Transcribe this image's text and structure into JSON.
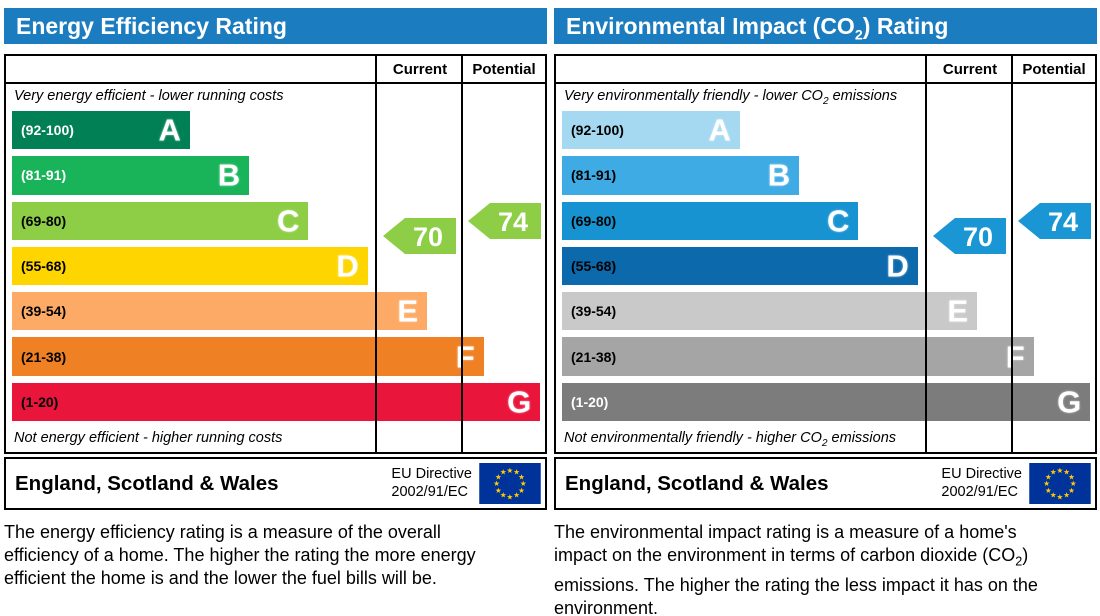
{
  "header_color": "#1b7cc0",
  "panels": [
    {
      "id": "energy-efficiency",
      "title_parts": {
        "pre": "Energy Efficiency Rating",
        "sub": "",
        "post": ""
      },
      "columns": {
        "current": "Current",
        "potential": "Potential"
      },
      "top_note_parts": {
        "pre": "Very energy efficient - lower running costs",
        "sub": "",
        "post": ""
      },
      "bottom_note_parts": {
        "pre": "Not energy efficient - higher running costs",
        "sub": "",
        "post": ""
      },
      "bands": [
        {
          "letter": "A",
          "range": "(92-100)",
          "color": "#008054",
          "text_color": "#ffffff",
          "width_pct": 33
        },
        {
          "letter": "B",
          "range": "(81-91)",
          "color": "#19b459",
          "text_color": "#ffffff",
          "width_pct": 44
        },
        {
          "letter": "C",
          "range": "(69-80)",
          "color": "#8dce46",
          "text_color": "#000000",
          "width_pct": 55
        },
        {
          "letter": "D",
          "range": "(55-68)",
          "color": "#ffd500",
          "text_color": "#000000",
          "width_pct": 66
        },
        {
          "letter": "E",
          "range": "(39-54)",
          "color": "#fcaa65",
          "text_color": "#000000",
          "width_pct": 77
        },
        {
          "letter": "F",
          "range": "(21-38)",
          "color": "#ef8023",
          "text_color": "#000000",
          "width_pct": 87.5
        },
        {
          "letter": "G",
          "range": "(1-20)",
          "color": "#e9153b",
          "text_color": "#000000",
          "width_pct": 98
        }
      ],
      "current": {
        "value": "70",
        "color": "#8dce46"
      },
      "potential": {
        "value": "74",
        "color": "#8dce46"
      },
      "footer": {
        "region": "England, Scotland & Wales",
        "directive_line1": "EU Directive",
        "directive_line2": "2002/91/EC"
      },
      "description_parts": {
        "pre": "The energy efficiency rating is a measure of the overall efficiency of a home. The higher the rating the more energy efficient the home is and the lower the fuel bills will be.",
        "sub": "",
        "post": ""
      }
    },
    {
      "id": "environmental-impact",
      "title_parts": {
        "pre": "Environmental Impact (CO",
        "sub": "2",
        "post": ") Rating"
      },
      "columns": {
        "current": "Current",
        "potential": "Potential"
      },
      "top_note_parts": {
        "pre": "Very environmentally friendly - lower CO",
        "sub": "2",
        "post": " emissions"
      },
      "bottom_note_parts": {
        "pre": "Not environmentally friendly - higher CO",
        "sub": "2",
        "post": " emissions"
      },
      "bands": [
        {
          "letter": "A",
          "range": "(92-100)",
          "color": "#a5d9f2",
          "text_color": "#000000",
          "width_pct": 33
        },
        {
          "letter": "B",
          "range": "(81-91)",
          "color": "#3fabe4",
          "text_color": "#000000",
          "width_pct": 44
        },
        {
          "letter": "C",
          "range": "(69-80)",
          "color": "#1693d0",
          "text_color": "#000000",
          "width_pct": 55
        },
        {
          "letter": "D",
          "range": "(55-68)",
          "color": "#0c69ac",
          "text_color": "#000000",
          "width_pct": 66
        },
        {
          "letter": "E",
          "range": "(39-54)",
          "color": "#c9c9c9",
          "text_color": "#000000",
          "width_pct": 77
        },
        {
          "letter": "F",
          "range": "(21-38)",
          "color": "#a5a5a5",
          "text_color": "#000000",
          "width_pct": 87.5
        },
        {
          "letter": "G",
          "range": "(1-20)",
          "color": "#7c7c7c",
          "text_color": "#ffffff",
          "width_pct": 98
        }
      ],
      "current": {
        "value": "70",
        "color": "#1a96d4"
      },
      "potential": {
        "value": "74",
        "color": "#1a96d4"
      },
      "footer": {
        "region": "England, Scotland & Wales",
        "directive_line1": "EU Directive",
        "directive_line2": "2002/91/EC"
      },
      "description_parts": {
        "pre": "The environmental impact rating is a measure of a home's impact on the environment in terms of carbon dioxide (CO",
        "sub": "2",
        "post": ") emissions. The higher the rating the less impact it has on the environment."
      }
    }
  ],
  "chart_data": [
    {
      "type": "bar",
      "title": "Energy Efficiency Rating",
      "categories": [
        "A (92-100)",
        "B (81-91)",
        "C (69-80)",
        "D (55-68)",
        "E (39-54)",
        "F (21-38)",
        "G (1-20)"
      ],
      "band_colors": [
        "#008054",
        "#19b459",
        "#8dce46",
        "#ffd500",
        "#fcaa65",
        "#ef8023",
        "#e9153b"
      ],
      "series": [
        {
          "name": "Current",
          "values": [
            70
          ],
          "band": "C"
        },
        {
          "name": "Potential",
          "values": [
            74
          ],
          "band": "C"
        }
      ],
      "xlabel": "",
      "ylabel": "",
      "ylim": [
        1,
        100
      ],
      "annotations": [
        "Very energy efficient - lower running costs",
        "Not energy efficient - higher running costs",
        "England, Scotland & Wales",
        "EU Directive 2002/91/EC"
      ]
    },
    {
      "type": "bar",
      "title": "Environmental Impact (CO2) Rating",
      "categories": [
        "A (92-100)",
        "B (81-91)",
        "C (69-80)",
        "D (55-68)",
        "E (39-54)",
        "F (21-38)",
        "G (1-20)"
      ],
      "band_colors": [
        "#a5d9f2",
        "#3fabe4",
        "#1693d0",
        "#0c69ac",
        "#c9c9c9",
        "#a5a5a5",
        "#7c7c7c"
      ],
      "series": [
        {
          "name": "Current",
          "values": [
            70
          ],
          "band": "C"
        },
        {
          "name": "Potential",
          "values": [
            74
          ],
          "band": "C"
        }
      ],
      "xlabel": "",
      "ylabel": "",
      "ylim": [
        1,
        100
      ],
      "annotations": [
        "Very environmentally friendly - lower CO2 emissions",
        "Not environmentally friendly - higher CO2 emissions",
        "England, Scotland & Wales",
        "EU Directive 2002/91/EC"
      ]
    }
  ]
}
